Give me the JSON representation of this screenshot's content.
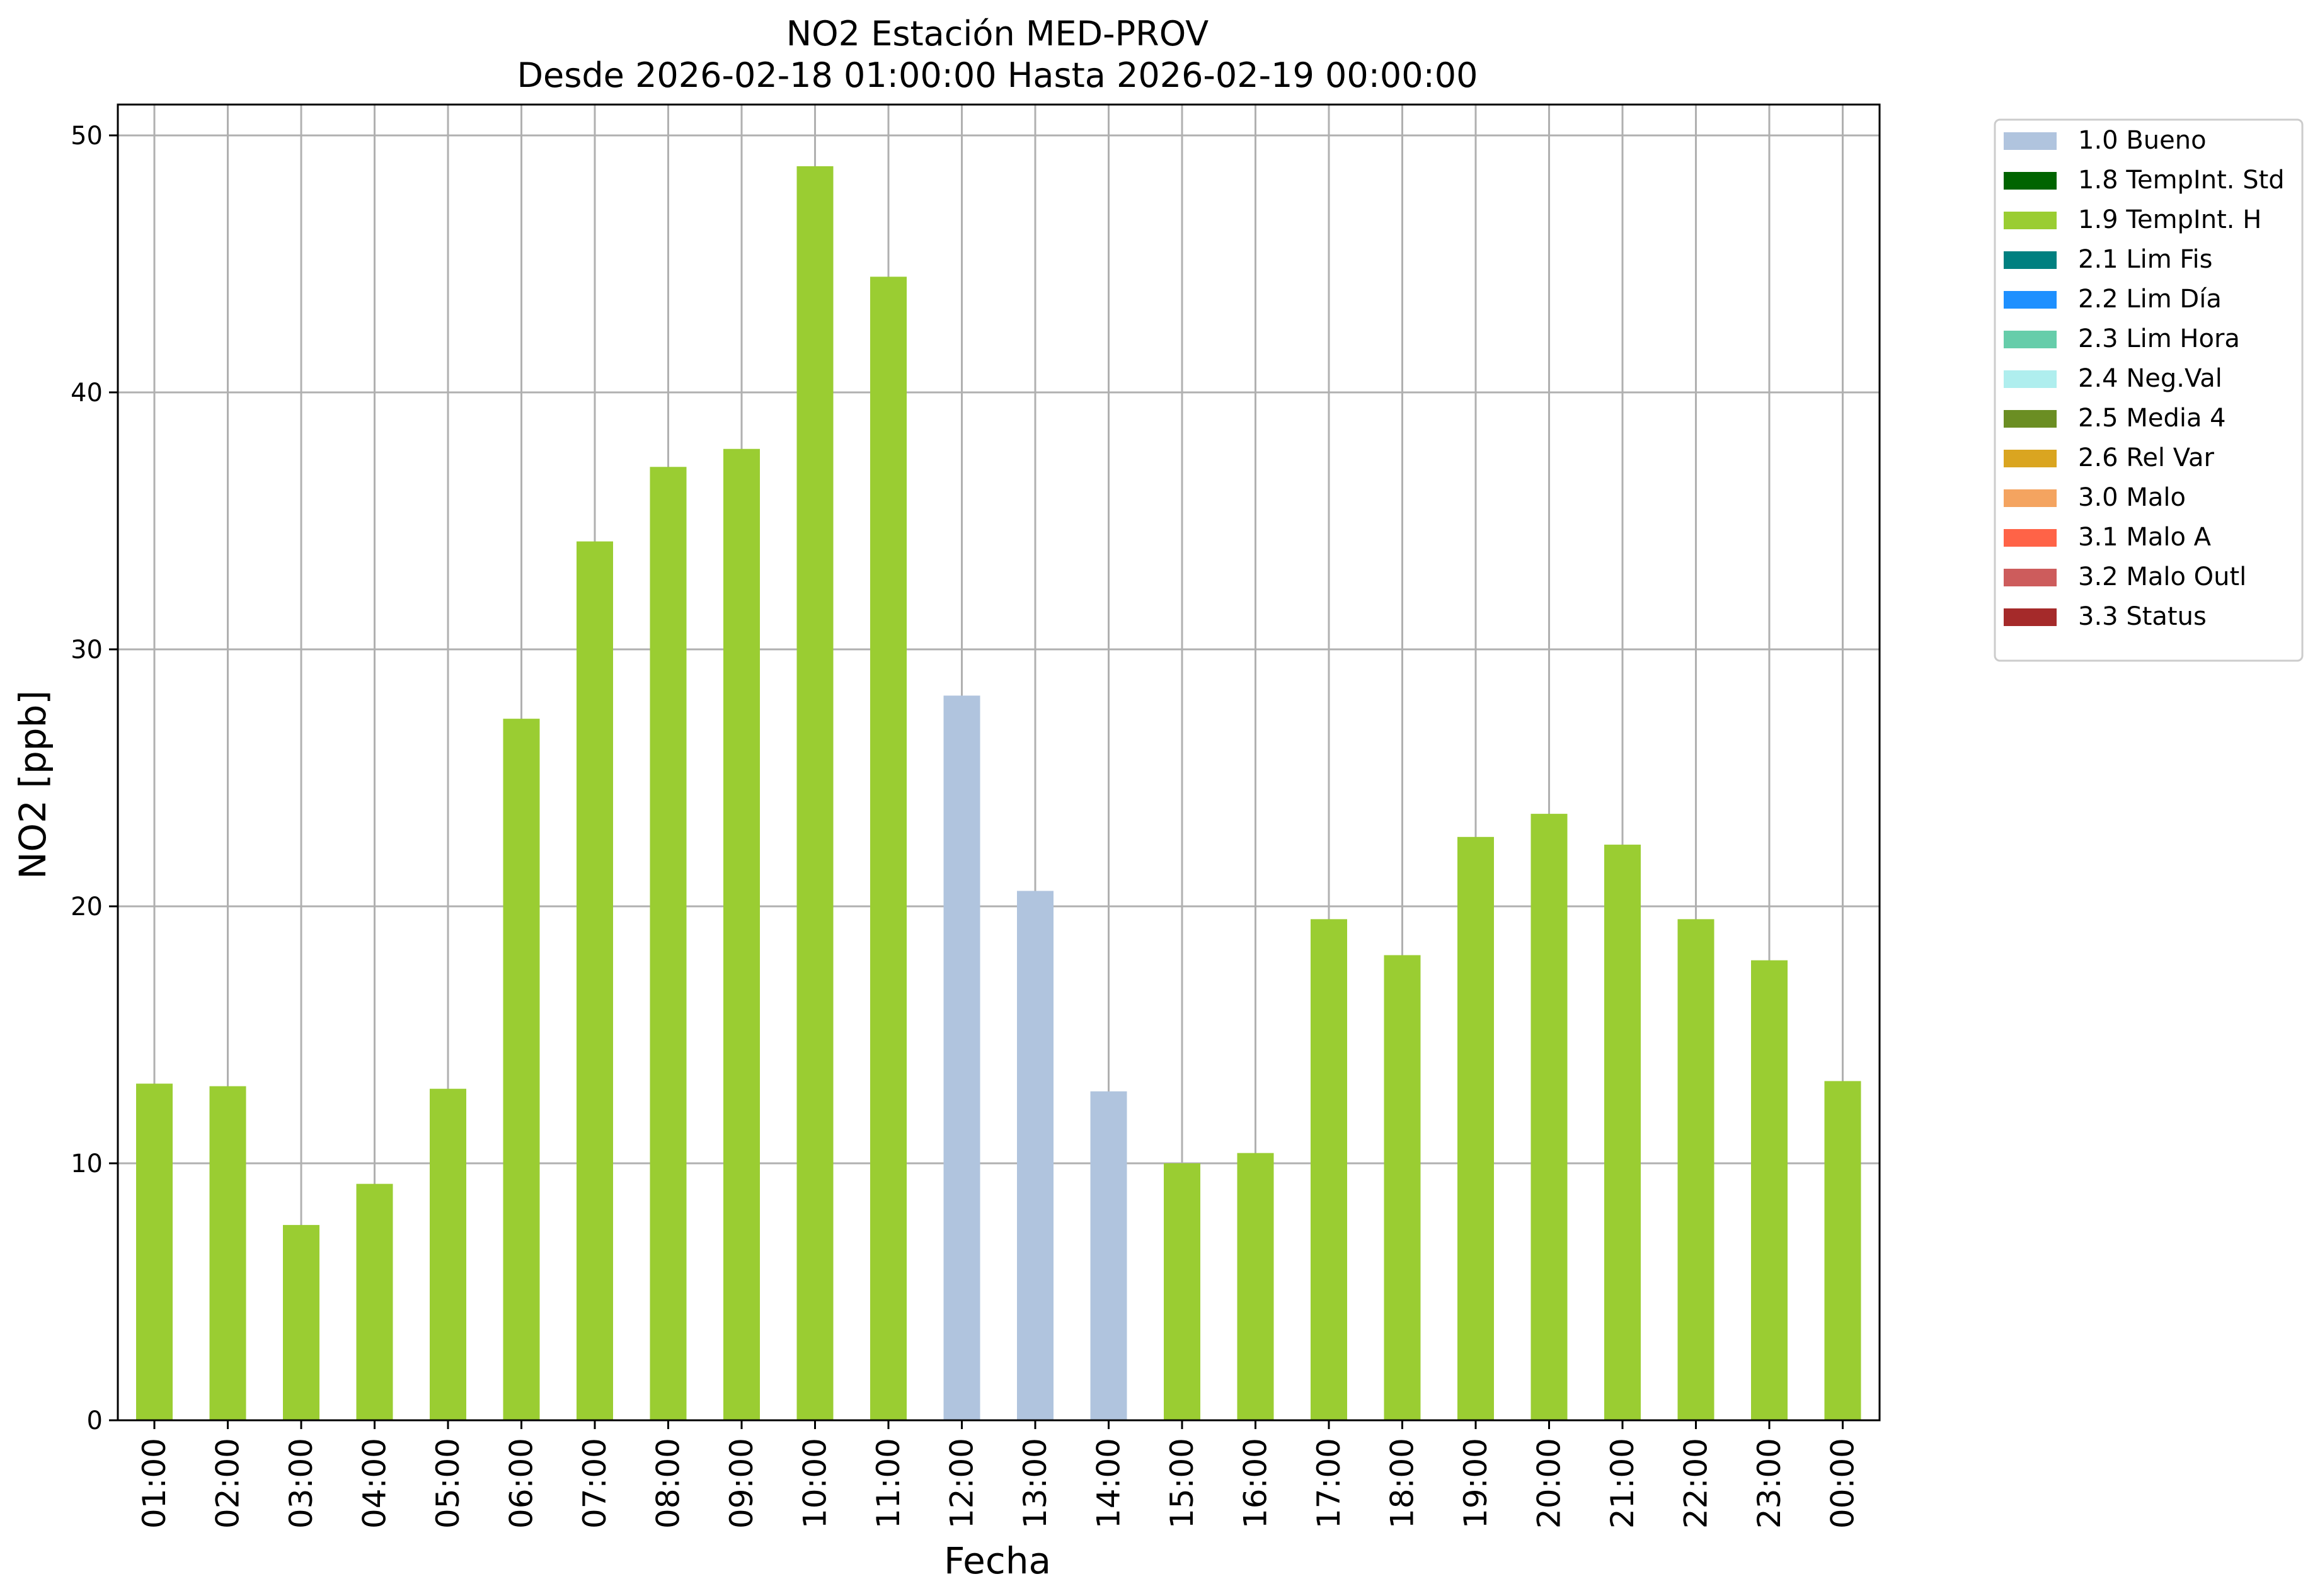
{
  "chart_data": {
    "type": "bar",
    "title": "NO2 Estación MED-PROV",
    "subtitle": "Desde 2026-02-18 01:00:00 Hasta 2026-02-19 00:00:00",
    "xlabel": "Fecha",
    "ylabel": "NO2 [ppb]",
    "ylim": [
      0,
      51.2
    ],
    "yticks": [
      0,
      10,
      20,
      30,
      40,
      50
    ],
    "grid": true,
    "legend_position": "outside-top-right",
    "categories": [
      "01:00",
      "02:00",
      "03:00",
      "04:00",
      "05:00",
      "06:00",
      "07:00",
      "08:00",
      "09:00",
      "10:00",
      "11:00",
      "12:00",
      "13:00",
      "14:00",
      "15:00",
      "16:00",
      "17:00",
      "18:00",
      "19:00",
      "20:00",
      "21:00",
      "22:00",
      "23:00",
      "00:00"
    ],
    "values": [
      13.1,
      13.0,
      7.6,
      9.2,
      12.9,
      27.3,
      34.2,
      37.1,
      37.8,
      48.8,
      44.5,
      28.2,
      20.6,
      12.8,
      10.0,
      10.4,
      19.5,
      18.1,
      22.7,
      23.6,
      22.4,
      19.5,
      17.9,
      13.2
    ],
    "flags": [
      "1.9",
      "1.9",
      "1.9",
      "1.9",
      "1.9",
      "1.9",
      "1.9",
      "1.9",
      "1.9",
      "1.9",
      "1.9",
      "1.0",
      "1.0",
      "1.0",
      "1.9",
      "1.9",
      "1.9",
      "1.9",
      "1.9",
      "1.9",
      "1.9",
      "1.9",
      "1.9",
      "1.9"
    ],
    "legend": [
      {
        "code": "1.0",
        "label": "1.0 Bueno",
        "color": "#b0c4de"
      },
      {
        "code": "1.8",
        "label": "1.8 TempInt. Std",
        "color": "#006400"
      },
      {
        "code": "1.9",
        "label": "1.9 TempInt. H",
        "color": "#9acd32"
      },
      {
        "code": "2.1",
        "label": "2.1 Lim Fis",
        "color": "#008080"
      },
      {
        "code": "2.2",
        "label": "2.2 Lim Día",
        "color": "#1e90ff"
      },
      {
        "code": "2.3",
        "label": "2.3 Lim Hora",
        "color": "#66cdaa"
      },
      {
        "code": "2.4",
        "label": "2.4 Neg.Val",
        "color": "#afeeee"
      },
      {
        "code": "2.5",
        "label": "2.5 Media 4",
        "color": "#6b8e23"
      },
      {
        "code": "2.6",
        "label": "2.6 Rel Var",
        "color": "#daa520"
      },
      {
        "code": "3.0",
        "label": "3.0 Malo",
        "color": "#f4a460"
      },
      {
        "code": "3.1",
        "label": "3.1 Malo A",
        "color": "#ff6347"
      },
      {
        "code": "3.2",
        "label": "3.2 Malo Outl",
        "color": "#cd5c5c"
      },
      {
        "code": "3.3",
        "label": "3.3 Status",
        "color": "#a52a2a"
      }
    ],
    "colors": {
      "grid": "#b0b0b0",
      "axes": "#000000"
    }
  }
}
